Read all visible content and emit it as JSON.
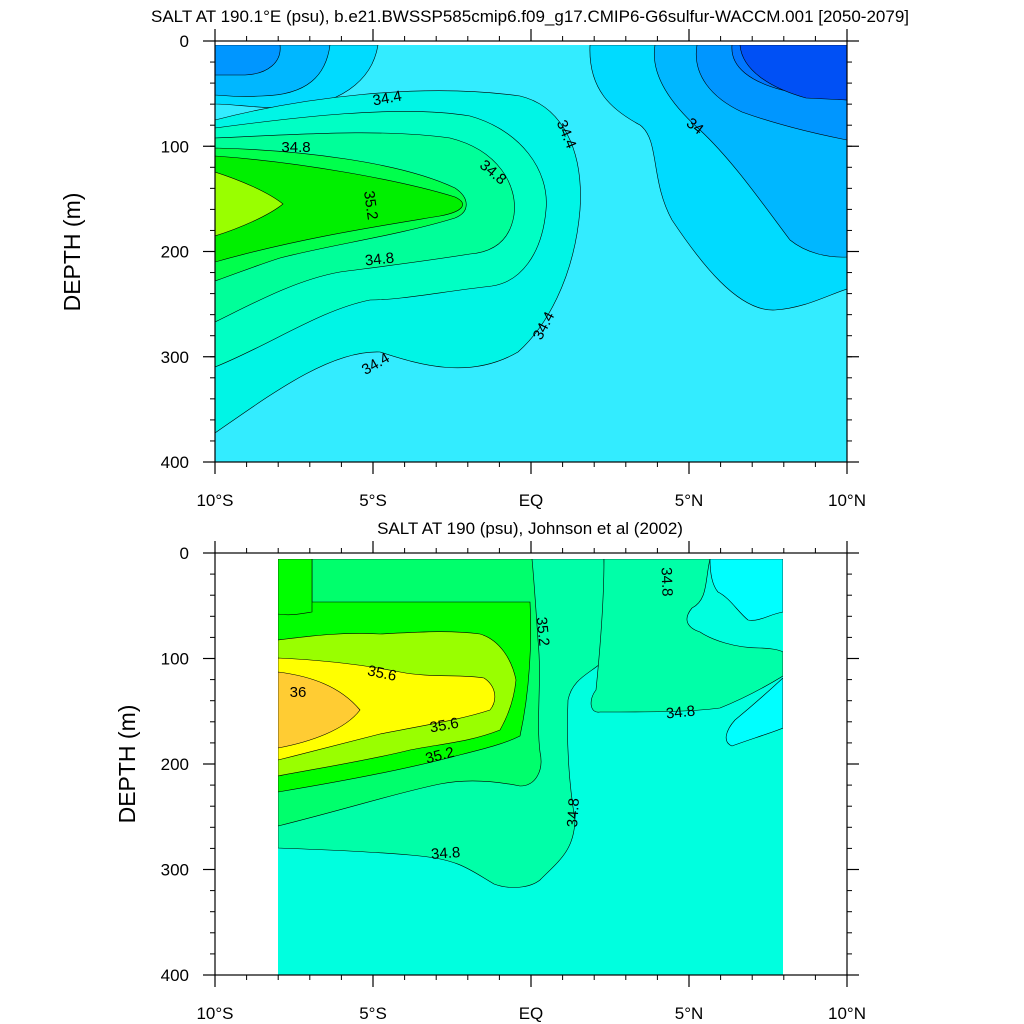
{
  "chart_data": [
    {
      "type": "contour",
      "title": "SALT AT 190.1°E (psu), b.e21.BWSSP585cmip6.f09_g17.CMIP6-G6sulfur-WACCM.001 [2050-2079]",
      "ylabel": "DEPTH (m)",
      "xlim": [
        -10,
        10
      ],
      "ylim": [
        400,
        0
      ],
      "x_ticks": [
        -10,
        -5,
        0,
        5,
        10
      ],
      "x_tick_labels": [
        "10°S",
        "5°S",
        "EQ",
        "5°N",
        "10°N"
      ],
      "y_ticks": [
        0,
        100,
        200,
        300,
        400
      ],
      "y_tick_labels": [
        "0",
        "100",
        "200",
        "300",
        "400"
      ],
      "contour_labels": [
        "34.4",
        "34.8",
        "35.2",
        "34.8",
        "34.8",
        "34.4",
        "34.4",
        "34.4",
        "34"
      ],
      "approx_salinity_field": {
        "max": {
          "value": 35.3,
          "lat": -10,
          "depth": 155
        },
        "high_tongue_tip": {
          "value": 35.2,
          "lat": -2.3,
          "depth": 150
        },
        "min": {
          "value": 33.8,
          "lat": 9,
          "depth": 20
        }
      }
    },
    {
      "type": "contour",
      "title": "SALT AT 190 (psu), Johnson et al (2002)",
      "ylabel": "DEPTH (m)",
      "xlim": [
        -10,
        10
      ],
      "ylim": [
        400,
        0
      ],
      "data_extent_lat": [
        -8,
        8
      ],
      "data_extent_depth": [
        5,
        400
      ],
      "x_ticks": [
        -10,
        -5,
        0,
        5,
        10
      ],
      "x_tick_labels": [
        "10°S",
        "5°S",
        "EQ",
        "5°N",
        "10°N"
      ],
      "y_ticks": [
        0,
        100,
        200,
        300,
        400
      ],
      "y_tick_labels": [
        "0",
        "100",
        "200",
        "300",
        "400"
      ],
      "contour_labels": [
        "35.6",
        "36",
        "35.6",
        "35.2",
        "35.2",
        "34.8",
        "34.8",
        "34.8",
        "34.8"
      ],
      "approx_salinity_field": {
        "max": {
          "value": 36.1,
          "lat": -7.5,
          "depth": 150
        },
        "min": {
          "value": 34.6,
          "lat": 7,
          "depth": 30
        }
      }
    }
  ]
}
